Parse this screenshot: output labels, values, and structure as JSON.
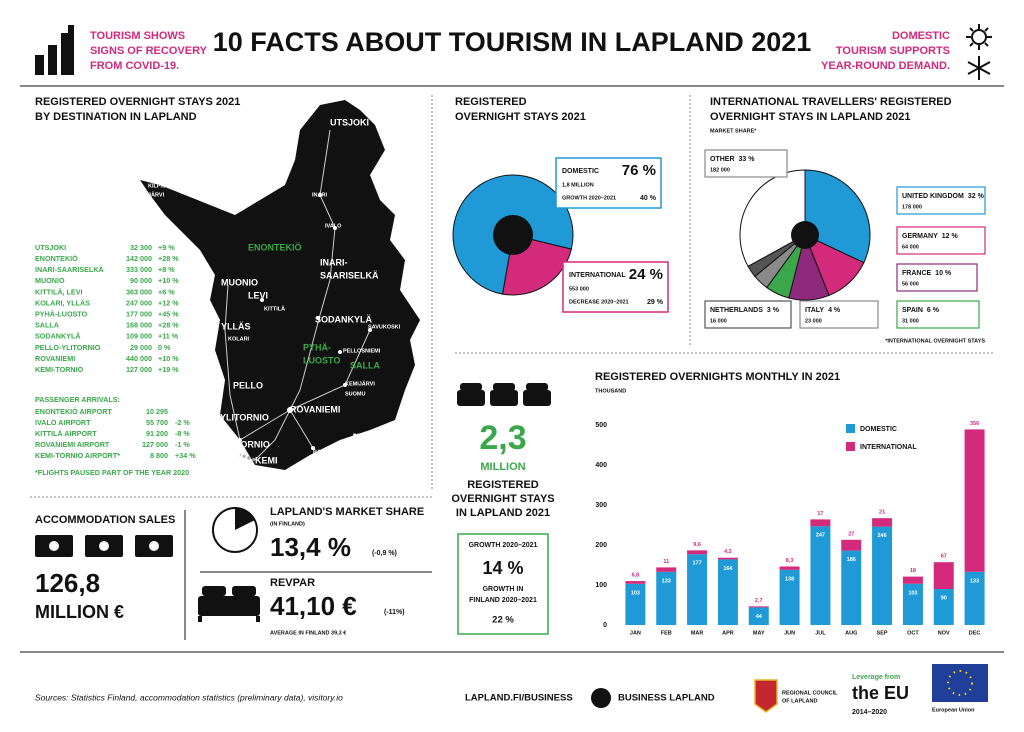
{
  "header": {
    "left_lines": [
      "TOURISM SHOWS",
      "SIGNS OF RECOVERY",
      "FROM COVID-19."
    ],
    "title": "10 FACTS ABOUT TOURISM IN LAPLAND 2021",
    "right_lines": [
      "DOMESTIC",
      "TOURISM SUPPORTS",
      "YEAR-ROUND DEMAND."
    ]
  },
  "destinations": {
    "title": [
      "REGISTERED OVERNIGHT STAYS 2021",
      "BY DESTINATION IN LAPLAND"
    ],
    "rows": [
      [
        "UTSJOKI",
        "32 300",
        "+9 %"
      ],
      [
        "ENONTEKIÖ",
        "142 000",
        "+28 %"
      ],
      [
        "INARI-SAARISELKÄ",
        "333 000",
        "+8 %"
      ],
      [
        "MUONIO",
        "90 000",
        "+10 %"
      ],
      [
        "KITTILÄ, LEVI",
        "363 000",
        "+6 %"
      ],
      [
        "KOLARI, YLLÄS",
        "247 000",
        "+12 %"
      ],
      [
        "PYHÄ-LUOSTO",
        "177 000",
        "+45 %"
      ],
      [
        "SALLA",
        "168 000",
        "+28 %"
      ],
      [
        "SODANKYLÄ",
        "109 000",
        "+11 %"
      ],
      [
        "PELLO-YLITORNIO",
        "29 000",
        "0 %"
      ],
      [
        "ROVANIEMI",
        "440 000",
        "+10 %"
      ],
      [
        "KEMI-TORNIO",
        "127 000",
        "+19 %"
      ]
    ],
    "arrivals_title": "PASSENGER ARRIVALS:",
    "arrivals": [
      [
        "ENONTEKIÖ AIRPORT",
        "10 295"
      ],
      [
        "IVALO AIRPORT",
        "55 700",
        "-2 %"
      ],
      [
        "KITTILÄ AIRPORT",
        "91 200",
        "-8 %"
      ],
      [
        "ROVANIEMI AIRPORT",
        "127 000",
        "-1 %"
      ],
      [
        "KEMI-TORNIO AIRPORT*",
        "8 800",
        "+34 %"
      ]
    ],
    "footnote": "*FLIGHTS PAUSED PART OF THE YEAR 2020",
    "map_labels": [
      "UTSJOKI",
      "INARI",
      "IVALO",
      "KILPIS-",
      "JÄRVI",
      "ENONTEKIÖ",
      "INARI-",
      "SAARISELKÄ",
      "MUONIO",
      "LEVI",
      "KITTILÄ",
      "YLLÄS",
      "KOLARI",
      "SODANKYLÄ",
      "SAVUKOSKI",
      "PYHÄ-",
      "LUOSTO",
      "PELLOSNIEMI",
      "SALLA",
      "PELLO",
      "KEMIJÄRVI",
      "SUOMU",
      "YLITORNIO",
      "ROVANIEMI",
      "POSIO",
      "TORNIO",
      "KEMI",
      "RANUA"
    ]
  },
  "chart_data": [
    {
      "type": "donut",
      "title": [
        "REGISTERED",
        "OVERNIGHT STAYS 2021"
      ],
      "categories": [
        "DOMESTIC",
        "INTERNATIONAL"
      ],
      "values": [
        76,
        24
      ],
      "value_labels": [
        "76 %",
        "24 %"
      ],
      "colors": [
        "#1f9ad6",
        "#d42a7b"
      ],
      "details": [
        {
          "amount": "1,8 MILLION",
          "change_label": "GROWTH 2020–2021",
          "change": "40 %"
        },
        {
          "amount": "553 000",
          "change_label": "DECREASE 2020–2021",
          "change": "29 %"
        }
      ]
    },
    {
      "type": "pie",
      "title": [
        "INTERNATIONAL TRAVELLERS' REGISTERED",
        "OVERNIGHT STAYS IN LAPLAND 2021"
      ],
      "subtitle": "MARKET SHARE*",
      "note": "*INTERNATIONAL OVERNIGHT STAYS",
      "categories": [
        "UNITED KINGDOM",
        "GERMANY",
        "FRANCE",
        "SPAIN",
        "ITALY",
        "NETHERLANDS",
        "OTHER"
      ],
      "values": [
        32,
        12,
        10,
        6,
        4,
        3,
        33
      ],
      "value_labels": [
        "32 %",
        "12 %",
        "10 %",
        "6 %",
        "4 %",
        "3 %",
        "33 %"
      ],
      "amounts": [
        "178 000",
        "64 000",
        "56 000",
        "31 000",
        "23 000",
        "16 000",
        "182 000"
      ],
      "colors": [
        "#1f9ad6",
        "#d42a7b",
        "#8e2a7c",
        "#3aa84a",
        "#8a8a8a",
        "#555555",
        "#ffffff"
      ]
    },
    {
      "type": "bar",
      "stacked": true,
      "title": "REGISTERED OVERNIGHTS MONTHLY IN 2021",
      "subtitle": "THOUSAND",
      "categories": [
        "JAN",
        "FEB",
        "MAR",
        "APR",
        "MAY",
        "JUN",
        "JUL",
        "AUG",
        "SEP",
        "OCT",
        "NOV",
        "DEC"
      ],
      "series": [
        {
          "name": "DOMESTIC",
          "color": "#1f9ad6",
          "values": [
            103,
            133,
            177,
            164,
            44,
            138,
            247,
            186,
            246,
            103,
            90,
            133
          ]
        },
        {
          "name": "INTERNATIONAL",
          "color": "#d42a7b",
          "values": [
            6.8,
            11,
            9.6,
            4.2,
            2.7,
            8.3,
            17,
            27,
            21,
            18,
            67,
            356
          ],
          "value_labels": [
            "6,8",
            "11",
            "9,6",
            "4,2",
            "2,7",
            "8,3",
            "17",
            "27",
            "21",
            "18",
            "67",
            "356"
          ]
        }
      ],
      "ylim": [
        0,
        500
      ],
      "yticks": [
        0,
        100,
        200,
        300,
        400,
        500
      ],
      "grid": false
    }
  ],
  "total_stays": {
    "value": "2,3",
    "unit": "MILLION",
    "caption": [
      "REGISTERED",
      "OVERNIGHT STAYS",
      "IN LAPLAND 2021"
    ],
    "growth_label": "GROWTH 2020–2021",
    "growth": "14 %",
    "finland_label": [
      "GROWTH IN",
      "FINLAND 2020–2021"
    ],
    "finland_growth": "22 %"
  },
  "accommodation_sales": {
    "title": "ACCOMMODATION SALES",
    "value": "126,8",
    "unit": "MILLION €"
  },
  "market_share": {
    "title": "LAPLAND'S MARKET SHARE",
    "subtitle": "(IN FINLAND)",
    "value": "13,4 %",
    "change": "(-0,9 %)"
  },
  "revpar": {
    "title": "REVPAR",
    "value": "41,10 €",
    "change": "(-11%)",
    "note": "AVERAGE IN FINLAND 39,3 €"
  },
  "footer": {
    "sources": "Sources: Statistics Finland, accommodation statistics (preliminary data), visitory.io",
    "link": "LAPLAND.FI/BUSINESS",
    "brand": "BUSINESS LAPLAND",
    "council": [
      "REGIONAL COUNCIL",
      "OF LAPLAND"
    ],
    "eu_leverage": [
      "Leverage from",
      "the EU",
      "2014–2020"
    ],
    "eu": "European Union"
  }
}
